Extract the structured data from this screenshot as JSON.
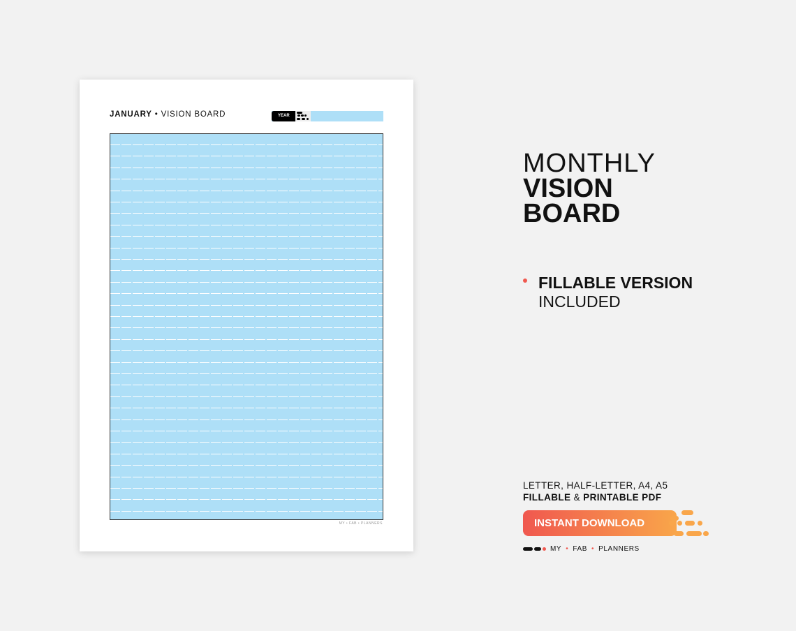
{
  "sheet": {
    "month": "JANUARY",
    "separator": "•",
    "title": "VISION BOARD",
    "year_label": "YEAR",
    "footer": "MY • FAB • PLANNERS",
    "board_color": "#aedff7",
    "line_count": 33
  },
  "headline": {
    "line1": "MONTHLY",
    "line2": "VISION",
    "line3": "BOARD"
  },
  "feature": {
    "bold": "FILLABLE VERSION",
    "rest": "INCLUDED",
    "bullet_color": "#f0584f"
  },
  "formats": {
    "sizes": "LETTER, HALF-LETTER, A4, A5",
    "fillable": "FILLABLE",
    "amp": "&",
    "printable": "PRINTABLE PDF"
  },
  "cta": {
    "label": "INSTANT DOWNLOAD",
    "gradient_start": "#f0584f",
    "gradient_end": "#f9a64a"
  },
  "brand": {
    "w1": "MY",
    "w2": "FAB",
    "w3": "PLANNERS",
    "sep": "•"
  }
}
